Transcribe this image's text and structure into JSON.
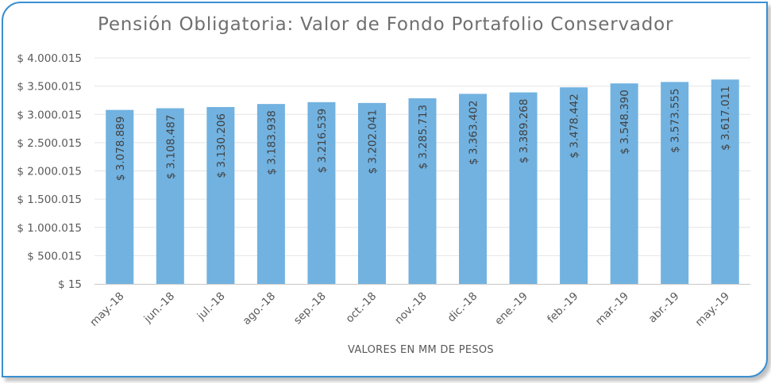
{
  "chart_data": {
    "type": "bar",
    "title": "Pensión Obligatoria: Valor de Fondo Portafolio Conservador",
    "xlabel": "VALORES EN MM DE PESOS",
    "ylabel": "",
    "ylim": [
      15,
      4000015
    ],
    "y_ticks": [
      15,
      500015,
      1000015,
      1500015,
      2000015,
      2500015,
      3000015,
      3500015,
      4000015
    ],
    "y_tick_labels": [
      "$ 15",
      "$ 500.015",
      "$ 1.000.015",
      "$ 1.500.015",
      "$ 2.000.015",
      "$ 2.500.015",
      "$ 3.000.015",
      "$ 3.500.015",
      "$ 4.000.015"
    ],
    "categories": [
      "may.-18",
      "jun.-18",
      "jul.-18",
      "ago.-18",
      "sep.-18",
      "oct.-18",
      "nov.-18",
      "dic.-18",
      "ene.-19",
      "feb.-19",
      "mar.-19",
      "abr.-19",
      "may.-19"
    ],
    "values": [
      3078889,
      3108487,
      3130206,
      3183938,
      3216539,
      3202041,
      3285713,
      3363402,
      3389268,
      3478442,
      3548390,
      3573555,
      3617011
    ],
    "data_labels": [
      "$ 3.078.889",
      "$ 3.108.487",
      "$ 3.130.206",
      "$ 3.183.938",
      "$ 3.216.539",
      "$ 3.202.041",
      "$ 3.285.713",
      "$ 3.363.402",
      "$ 3.389.268",
      "$ 3.478.442",
      "$ 3.548.390",
      "$ 3.573.555",
      "$ 3.617.011"
    ],
    "colors": {
      "bar": "#71b2e0",
      "grid": "#e4e4e4",
      "axis": "#c8c8c8",
      "frame": "#3a8fd0"
    },
    "grid": true,
    "legend": "none"
  }
}
